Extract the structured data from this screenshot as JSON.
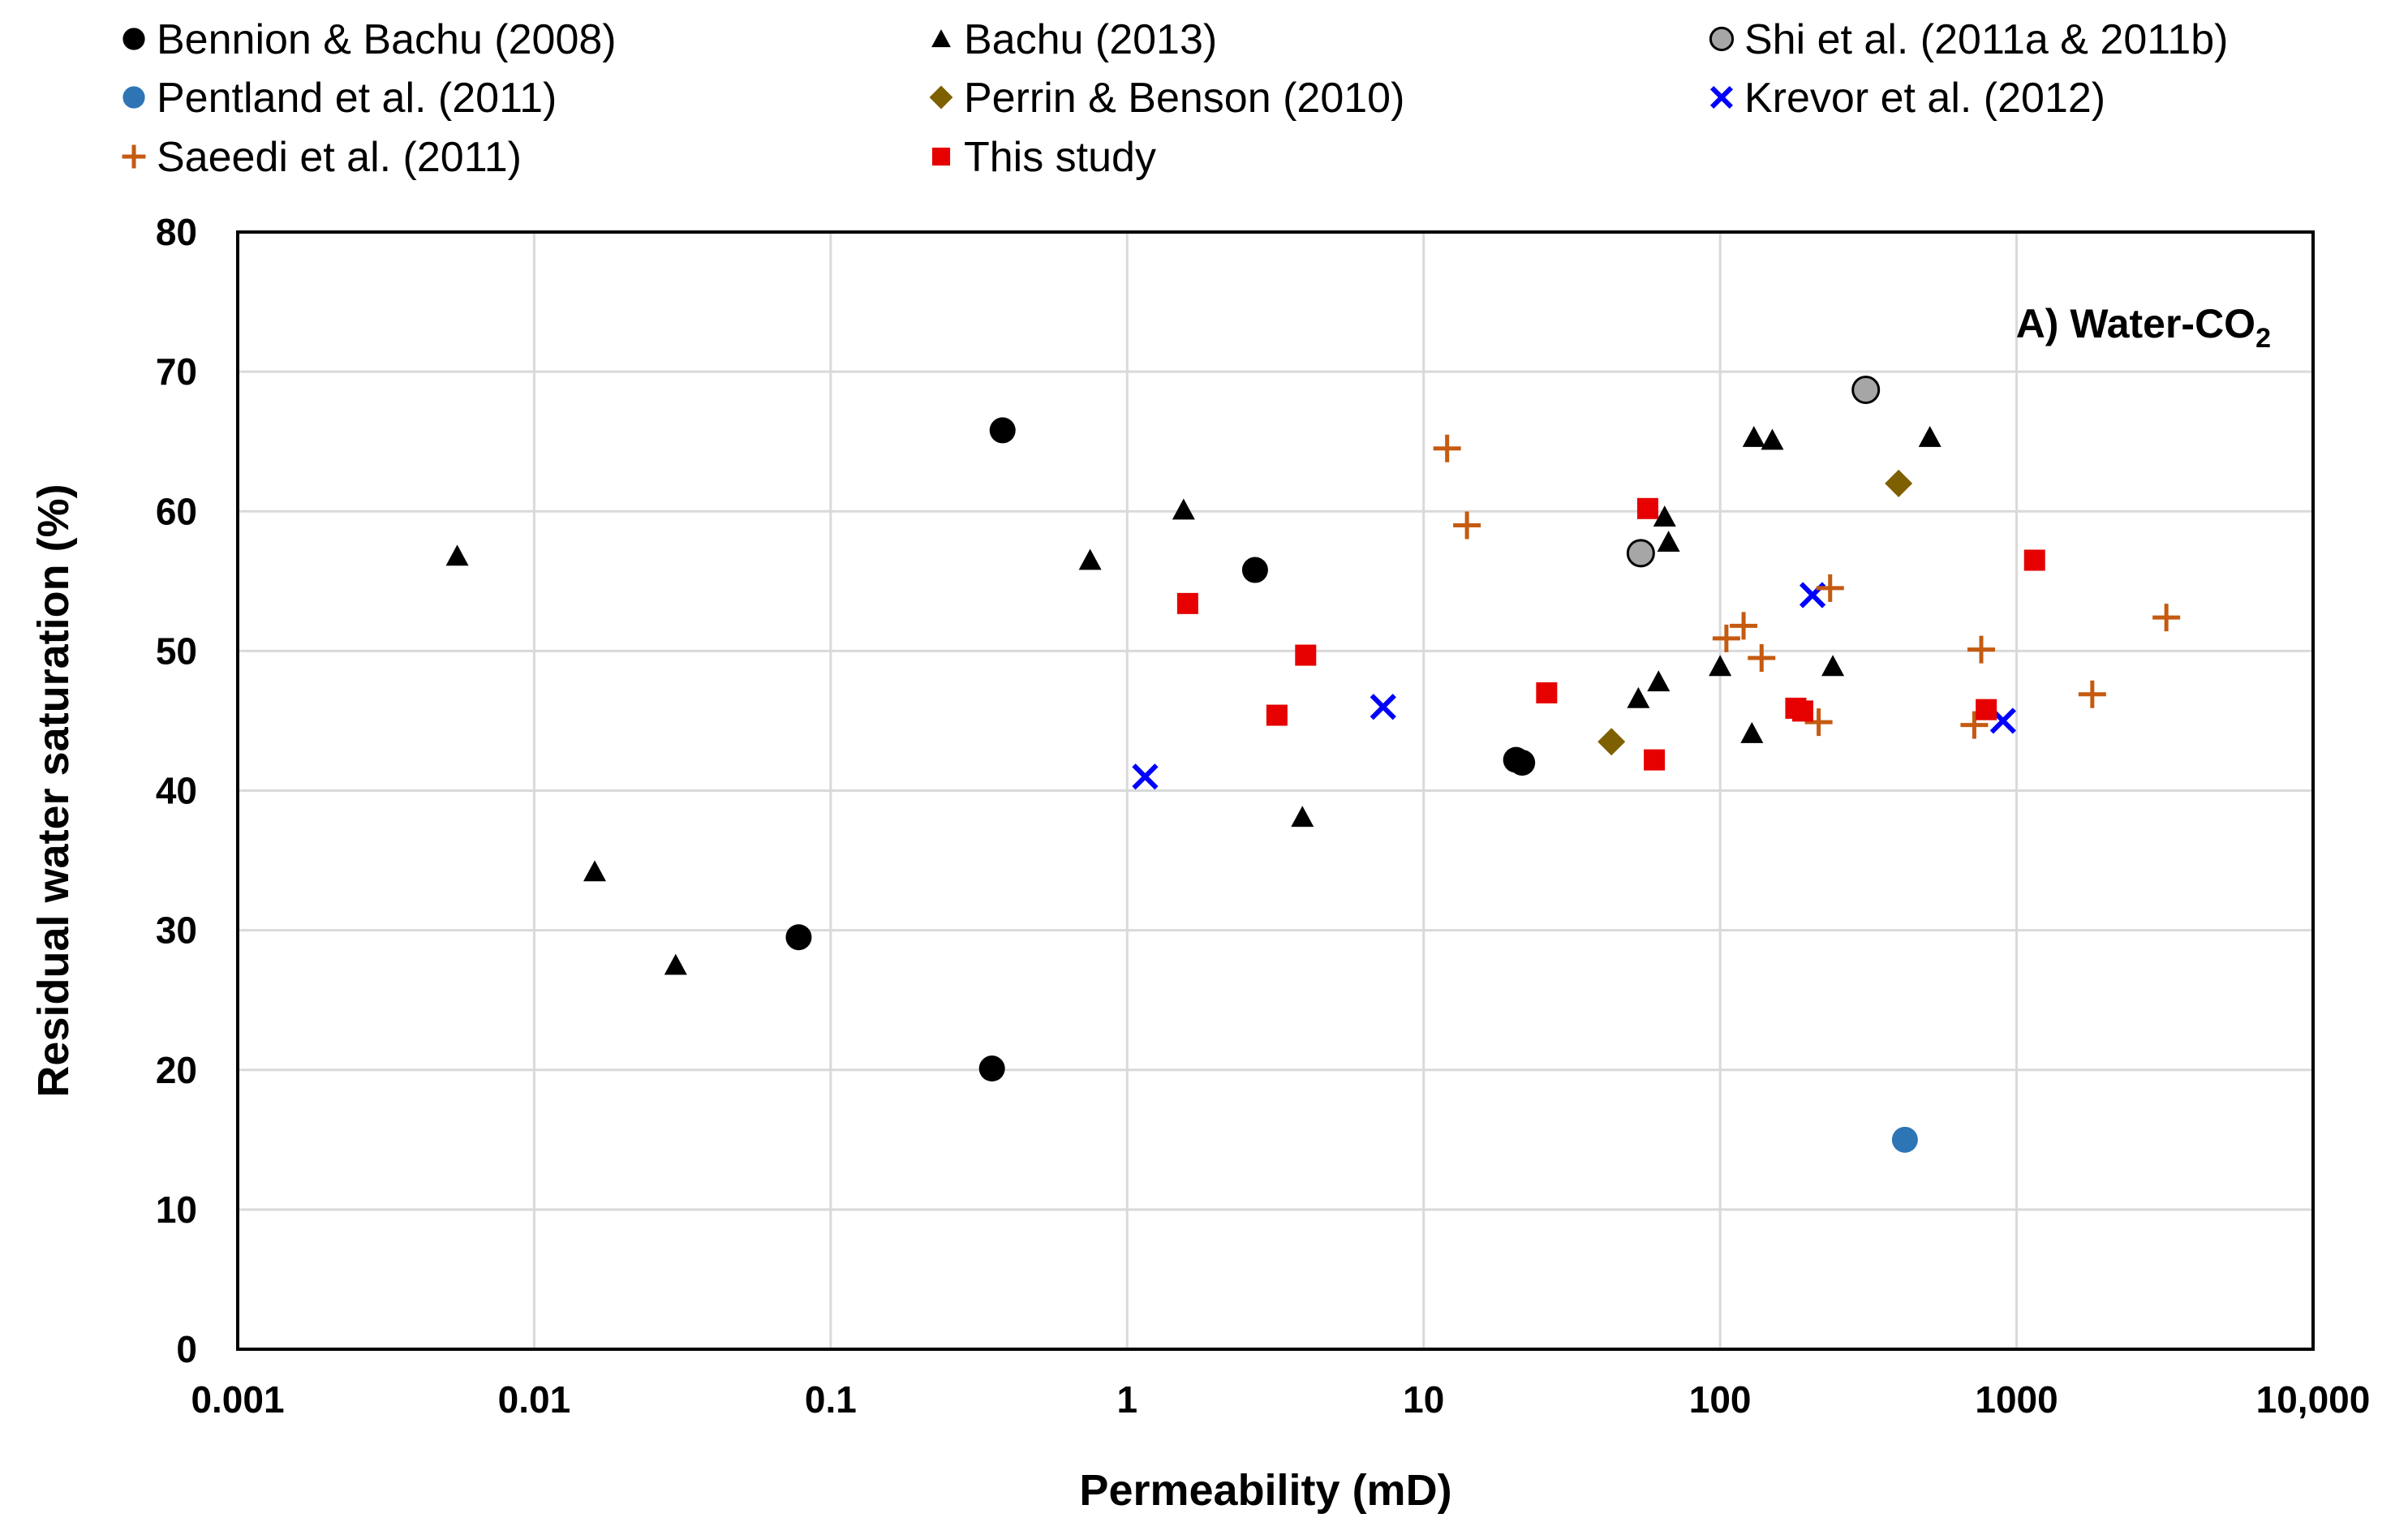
{
  "chart_data": {
    "type": "scatter",
    "title": "",
    "annotation": {
      "main": "A) Water-CO",
      "subscript": "2"
    },
    "xlabel": "Permeability (mD)",
    "ylabel": "Residual water saturation (%)",
    "xscale": "log",
    "xlim": [
      0.001,
      10000
    ],
    "ylim": [
      0,
      80
    ],
    "xticks": [
      0.001,
      0.01,
      0.1,
      1,
      10,
      100,
      1000,
      10000
    ],
    "xtick_labels": [
      "0.001",
      "0.01",
      "0.1",
      "1",
      "10",
      "100",
      "1000",
      "10,000"
    ],
    "yticks": [
      0,
      10,
      20,
      30,
      40,
      50,
      60,
      70,
      80
    ],
    "ytick_labels": [
      "0",
      "10",
      "20",
      "30",
      "40",
      "50",
      "60",
      "70",
      "80"
    ],
    "grid": true,
    "legend_position": "top",
    "series": [
      {
        "name": "Bennion & Bachu (2008)",
        "marker": "circle",
        "color": "#000000",
        "points": [
          [
            0.38,
            65.8
          ],
          [
            2.7,
            55.8
          ],
          [
            0.078,
            29.5
          ],
          [
            0.35,
            20.1
          ],
          [
            20.5,
            42.2
          ],
          [
            21.5,
            42.0
          ]
        ]
      },
      {
        "name": "Bachu (2013)",
        "marker": "triangle",
        "color": "#000000",
        "points": [
          [
            0.0055,
            56.8
          ],
          [
            0.016,
            34.2
          ],
          [
            0.03,
            27.5
          ],
          [
            0.75,
            56.5
          ],
          [
            1.55,
            60.1
          ],
          [
            3.9,
            38.1
          ],
          [
            53,
            46.6
          ],
          [
            62,
            47.8
          ],
          [
            65,
            59.6
          ],
          [
            67,
            57.8
          ],
          [
            100,
            48.9
          ],
          [
            128,
            44.1
          ],
          [
            130,
            65.3
          ],
          [
            150,
            65.1
          ],
          [
            240,
            48.9
          ],
          [
            510,
            65.3
          ]
        ]
      },
      {
        "name": "Shi et al. (2011a & 2011b)",
        "marker": "circle-gray",
        "color": "#a6a6a6",
        "points": [
          [
            54,
            57.0
          ],
          [
            310,
            68.7
          ]
        ]
      },
      {
        "name": "Pentland et al. (2011)",
        "marker": "circle",
        "color": "#2e75b6",
        "points": [
          [
            420,
            15.0
          ]
        ]
      },
      {
        "name": "Perrin & Benson (2010)",
        "marker": "diamond",
        "color": "#7f6000",
        "points": [
          [
            43,
            43.5
          ],
          [
            400,
            62.0
          ]
        ]
      },
      {
        "name": "Krevor et al. (2012)",
        "marker": "x",
        "color": "#0000ff",
        "points": [
          [
            1.15,
            41.0
          ],
          [
            7.3,
            46.0
          ],
          [
            205,
            54.0
          ],
          [
            900,
            45.0
          ]
        ]
      },
      {
        "name": "Saeedi et al. (2011)",
        "marker": "plus",
        "color": "#c55a11",
        "points": [
          [
            12,
            64.5
          ],
          [
            14,
            59.0
          ],
          [
            105,
            50.9
          ],
          [
            120,
            51.8
          ],
          [
            138,
            49.5
          ],
          [
            215,
            44.9
          ],
          [
            235,
            54.5
          ],
          [
            720,
            44.7
          ],
          [
            760,
            50.1
          ],
          [
            1800,
            46.9
          ],
          [
            3200,
            52.4
          ]
        ]
      },
      {
        "name": "This study",
        "marker": "square",
        "color": "#e60000",
        "points": [
          [
            1.6,
            53.4
          ],
          [
            3.2,
            45.4
          ],
          [
            4.0,
            49.7
          ],
          [
            26,
            47.0
          ],
          [
            57,
            60.2
          ],
          [
            60,
            42.2
          ],
          [
            180,
            45.9
          ],
          [
            190,
            45.7
          ],
          [
            790,
            45.8
          ],
          [
            1150,
            56.5
          ]
        ]
      }
    ]
  }
}
